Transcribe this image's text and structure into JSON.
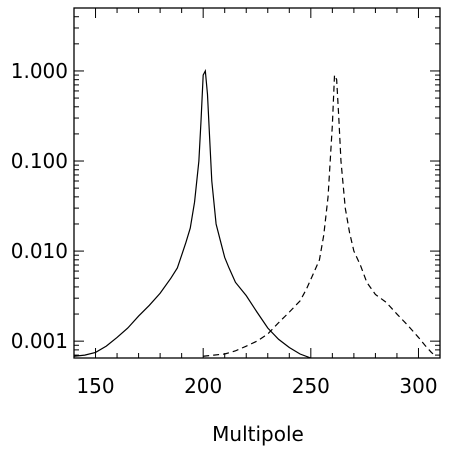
{
  "chart_data": {
    "type": "line",
    "xlabel": "Multipole",
    "ylabel": "",
    "title": "",
    "xlim": [
      140,
      310
    ],
    "ylim": [
      0.00065,
      5.0
    ],
    "yscale": "log",
    "x_ticks": [
      150,
      200,
      250,
      300
    ],
    "x_tick_labels": [
      "150",
      "200",
      "250",
      "300"
    ],
    "y_ticks": [
      0.001,
      0.01,
      0.1,
      1.0
    ],
    "y_tick_labels": [
      "0.001",
      "0.010",
      "0.100",
      "1.000"
    ],
    "grid": false,
    "series": [
      {
        "style": "solid",
        "x": [
          140,
          145,
          150,
          155,
          160,
          165,
          170,
          175,
          180,
          185,
          188,
          190,
          192,
          194,
          196,
          198,
          199,
          200,
          201,
          202,
          203,
          204,
          206,
          208,
          210,
          212,
          215,
          220,
          225,
          230,
          235,
          240,
          245,
          250
        ],
        "y": [
          0.00068,
          0.0007,
          0.00075,
          0.00088,
          0.0011,
          0.0014,
          0.0019,
          0.0025,
          0.0034,
          0.005,
          0.0065,
          0.009,
          0.0125,
          0.018,
          0.035,
          0.1,
          0.28,
          0.9,
          1.0,
          0.55,
          0.18,
          0.06,
          0.02,
          0.013,
          0.0085,
          0.0065,
          0.0045,
          0.0032,
          0.0021,
          0.0014,
          0.00105,
          0.00085,
          0.00072,
          0.00065
        ]
      },
      {
        "style": "dashed",
        "x": [
          200,
          205,
          210,
          215,
          220,
          225,
          230,
          235,
          240,
          245,
          248,
          251,
          254,
          256,
          258,
          260,
          261,
          262,
          263,
          264,
          266,
          268,
          270,
          273,
          276,
          280,
          285,
          290,
          295,
          300,
          303,
          306,
          308
        ],
        "y": [
          0.00068,
          0.0007,
          0.00072,
          0.00078,
          0.00088,
          0.001,
          0.0012,
          0.0016,
          0.0021,
          0.0028,
          0.0038,
          0.0055,
          0.008,
          0.015,
          0.04,
          0.25,
          0.9,
          0.8,
          0.3,
          0.1,
          0.03,
          0.016,
          0.01,
          0.007,
          0.0045,
          0.0033,
          0.0027,
          0.002,
          0.0015,
          0.0011,
          0.0009,
          0.00075,
          0.00068
        ]
      }
    ]
  }
}
